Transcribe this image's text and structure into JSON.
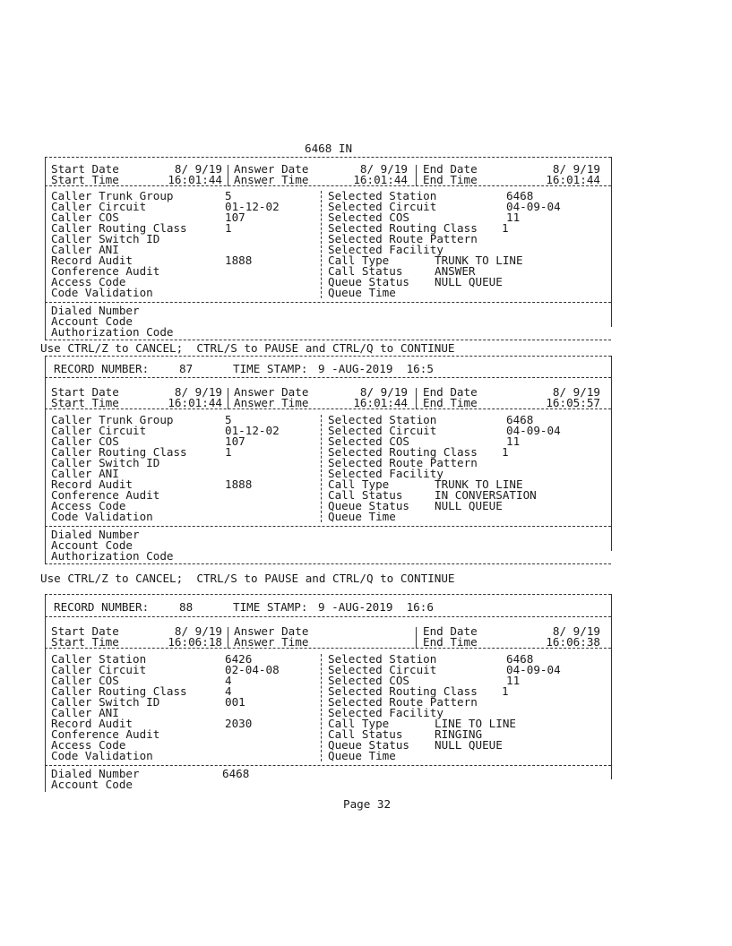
{
  "page_header": "6468 IN",
  "records": [
    {
      "record_number_label": "",
      "record_number": "",
      "time_stamp_label": "",
      "time_stamp": "",
      "dates": {
        "start_date_label": "Start Date",
        "start_date": "8/ 9/19",
        "start_time_label": "Start Time",
        "start_time": "16:01:44",
        "answer_date_label": "Answer Date",
        "answer_date": "8/ 9/19",
        "answer_time_label": "Answer Time",
        "answer_time": "16:01:44",
        "end_date_label": "End Date",
        "end_date": "8/ 9/19",
        "end_time_label": "End Time",
        "end_time": "16:01:44"
      },
      "left": [
        {
          "label": "Caller Trunk Group",
          "value": "5"
        },
        {
          "label": "Caller Circuit",
          "value": "01-12-02"
        },
        {
          "label": "Caller COS",
          "value": "107"
        },
        {
          "label": "Caller Routing Class",
          "value": "1"
        },
        {
          "label": "Caller Switch ID",
          "value": ""
        },
        {
          "label": "Caller ANI",
          "value": ""
        },
        {
          "label": "Record Audit",
          "value": "1888"
        },
        {
          "label": "Conference Audit",
          "value": ""
        },
        {
          "label": "Access Code",
          "value": ""
        },
        {
          "label": "Code Validation",
          "value": ""
        }
      ],
      "right": [
        {
          "label": "Selected Station",
          "value": "6468"
        },
        {
          "label": "Selected Circuit",
          "value": "04-09-04"
        },
        {
          "label": "Selected COS",
          "value": "11"
        },
        {
          "label": "Selected Routing Class",
          "value": "1"
        },
        {
          "label": "Selected Route Pattern",
          "value": ""
        },
        {
          "label": "Selected Facility",
          "value": ""
        },
        {
          "label": "Call Type",
          "value": "TRUNK TO LINE"
        },
        {
          "label": "Call Status",
          "value": "ANSWER"
        },
        {
          "label": "Queue Status",
          "value": "NULL QUEUE"
        },
        {
          "label": "Queue Time",
          "value": ""
        }
      ],
      "bottom": [
        {
          "label": "Dialed Number",
          "value": ""
        },
        {
          "label": "Account Code",
          "value": ""
        },
        {
          "label": "Authorization Code",
          "value": ""
        }
      ],
      "footer": "Use CTRL/Z to CANCEL;  CTRL/S to PAUSE and CTRL/Q to CONTINUE"
    },
    {
      "record_number_label": "RECORD NUMBER:",
      "record_number": "87",
      "time_stamp_label": "TIME STAMP:",
      "time_stamp": "9 -AUG-2019  16:5",
      "dates": {
        "start_date_label": "Start Date",
        "start_date": "8/ 9/19",
        "start_time_label": "Start Time",
        "start_time": "16:01:44",
        "answer_date_label": "Answer Date",
        "answer_date": "8/ 9/19",
        "answer_time_label": "Answer Time",
        "answer_time": "16:01:44",
        "end_date_label": "End Date",
        "end_date": "8/ 9/19",
        "end_time_label": "End Time",
        "end_time": "16:05:57"
      },
      "left": [
        {
          "label": "Caller Trunk Group",
          "value": "5"
        },
        {
          "label": "Caller Circuit",
          "value": "01-12-02"
        },
        {
          "label": "Caller COS",
          "value": "107"
        },
        {
          "label": "Caller Routing Class",
          "value": "1"
        },
        {
          "label": "Caller Switch ID",
          "value": ""
        },
        {
          "label": "Caller ANI",
          "value": ""
        },
        {
          "label": "Record Audit",
          "value": "1888"
        },
        {
          "label": "Conference Audit",
          "value": ""
        },
        {
          "label": "Access Code",
          "value": ""
        },
        {
          "label": "Code Validation",
          "value": ""
        }
      ],
      "right": [
        {
          "label": "Selected Station",
          "value": "6468"
        },
        {
          "label": "Selected Circuit",
          "value": "04-09-04"
        },
        {
          "label": "Selected COS",
          "value": "11"
        },
        {
          "label": "Selected Routing Class",
          "value": "1"
        },
        {
          "label": "Selected Route Pattern",
          "value": ""
        },
        {
          "label": "Selected Facility",
          "value": ""
        },
        {
          "label": "Call Type",
          "value": "TRUNK TO LINE"
        },
        {
          "label": "Call Status",
          "value": "IN CONVERSATION"
        },
        {
          "label": "Queue Status",
          "value": "NULL QUEUE"
        },
        {
          "label": "Queue Time",
          "value": ""
        }
      ],
      "bottom": [
        {
          "label": "Dialed Number",
          "value": ""
        },
        {
          "label": "Account Code",
          "value": ""
        },
        {
          "label": "Authorization Code",
          "value": ""
        }
      ],
      "footer": "Use CTRL/Z to CANCEL;  CTRL/S to PAUSE and CTRL/Q to CONTINUE"
    },
    {
      "record_number_label": "RECORD NUMBER:",
      "record_number": "88",
      "time_stamp_label": "TIME STAMP:",
      "time_stamp": "9 -AUG-2019  16:6",
      "dates": {
        "start_date_label": "Start Date",
        "start_date": "8/ 9/19",
        "start_time_label": "Start Time",
        "start_time": "16:06:18",
        "answer_date_label": "Answer Date",
        "answer_date": "",
        "answer_time_label": "Answer Time",
        "answer_time": "",
        "end_date_label": "End Date",
        "end_date": "8/ 9/19",
        "end_time_label": "End Time",
        "end_time": "16:06:38"
      },
      "left": [
        {
          "label": "Caller Station",
          "value": "6426"
        },
        {
          "label": "Caller Circuit",
          "value": "02-04-08"
        },
        {
          "label": "Caller COS",
          "value": "4"
        },
        {
          "label": "Caller Routing Class",
          "value": "4"
        },
        {
          "label": "Caller Switch ID",
          "value": "001"
        },
        {
          "label": "Caller ANI",
          "value": ""
        },
        {
          "label": "Record Audit",
          "value": "2030"
        },
        {
          "label": "Conference Audit",
          "value": ""
        },
        {
          "label": "Access Code",
          "value": ""
        },
        {
          "label": "Code Validation",
          "value": ""
        }
      ],
      "right": [
        {
          "label": "Selected Station",
          "value": "6468"
        },
        {
          "label": "Selected Circuit",
          "value": "04-09-04"
        },
        {
          "label": "Selected COS",
          "value": "11"
        },
        {
          "label": "Selected Routing Class",
          "value": "1"
        },
        {
          "label": "Selected Route Pattern",
          "value": ""
        },
        {
          "label": "Selected Facility",
          "value": ""
        },
        {
          "label": "Call Type",
          "value": "LINE TO LINE"
        },
        {
          "label": "Call Status",
          "value": "RINGING"
        },
        {
          "label": "Queue Status",
          "value": "NULL QUEUE"
        },
        {
          "label": "Queue Time",
          "value": ""
        }
      ],
      "bottom": [
        {
          "label": "Dialed Number",
          "value": "6468"
        },
        {
          "label": "Account Code",
          "value": ""
        }
      ],
      "footer": ""
    }
  ],
  "page_footer": "Page 32"
}
